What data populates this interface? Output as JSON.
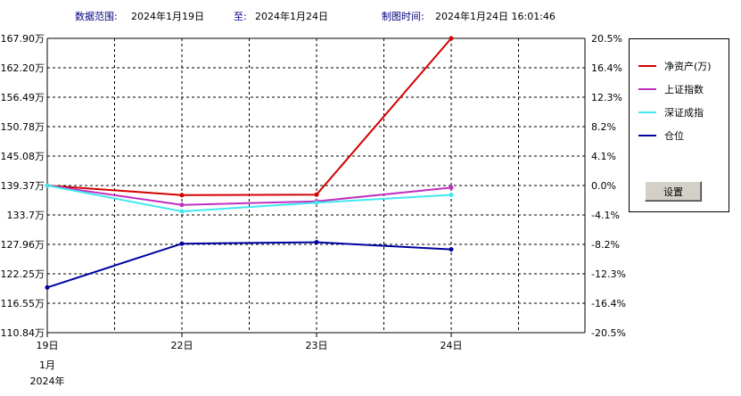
{
  "header": {
    "range_label": "数据范围:",
    "range_start": "2024年1月19日",
    "to_label": "至:",
    "range_end": "2024年1月24日",
    "made_label": "制图时间:",
    "made_time": "2024年1月24日 16:01:46"
  },
  "legend": {
    "items": [
      {
        "label": "净资产(万)",
        "color": "#d40000"
      },
      {
        "label": "上证指数",
        "color": "#c030c0"
      },
      {
        "label": "深证成指",
        "color": "#40e8f0"
      },
      {
        "label": "仓位",
        "color": "#0000a0"
      }
    ],
    "settings_label": "设置"
  },
  "chart_data": {
    "type": "line",
    "x": [
      "19日",
      "22日",
      "23日",
      "24日"
    ],
    "x_sub_labels": [
      "1月",
      "2024年"
    ],
    "left_ticks": [
      "167.90万",
      "162.20万",
      "156.49万",
      "150.78万",
      "145.08万",
      "139.37万",
      "133.7万",
      "127.96万",
      "122.25万",
      "116.55万",
      "110.84万"
    ],
    "right_ticks": [
      "20.5%",
      "16.4%",
      "12.3%",
      "8.2%",
      "4.1%",
      "0.0%",
      "-4.1%",
      "-8.2%",
      "-12.3%",
      "-16.4%",
      "-20.5%"
    ],
    "left_ylim": [
      110.84,
      167.9
    ],
    "right_ylim": [
      -20.5,
      20.5
    ],
    "grid": true,
    "legend_position": "right",
    "series": [
      {
        "name": "净资产(万)",
        "axis": "left",
        "color": "#d40000",
        "values": [
          139.37,
          137.5,
          137.6,
          167.9
        ]
      },
      {
        "name": "上证指数",
        "axis": "right",
        "color": "#c030c0",
        "values": [
          0.0,
          -2.7,
          -2.2,
          -0.3
        ]
      },
      {
        "name": "深证成指",
        "axis": "right",
        "color": "#40e8f0",
        "values": [
          0.0,
          -3.6,
          -2.4,
          -1.3
        ]
      },
      {
        "name": "仓位",
        "axis": "right",
        "color": "#0000a0",
        "values": [
          -14.2,
          -8.1,
          -7.9,
          -8.9
        ]
      }
    ]
  }
}
